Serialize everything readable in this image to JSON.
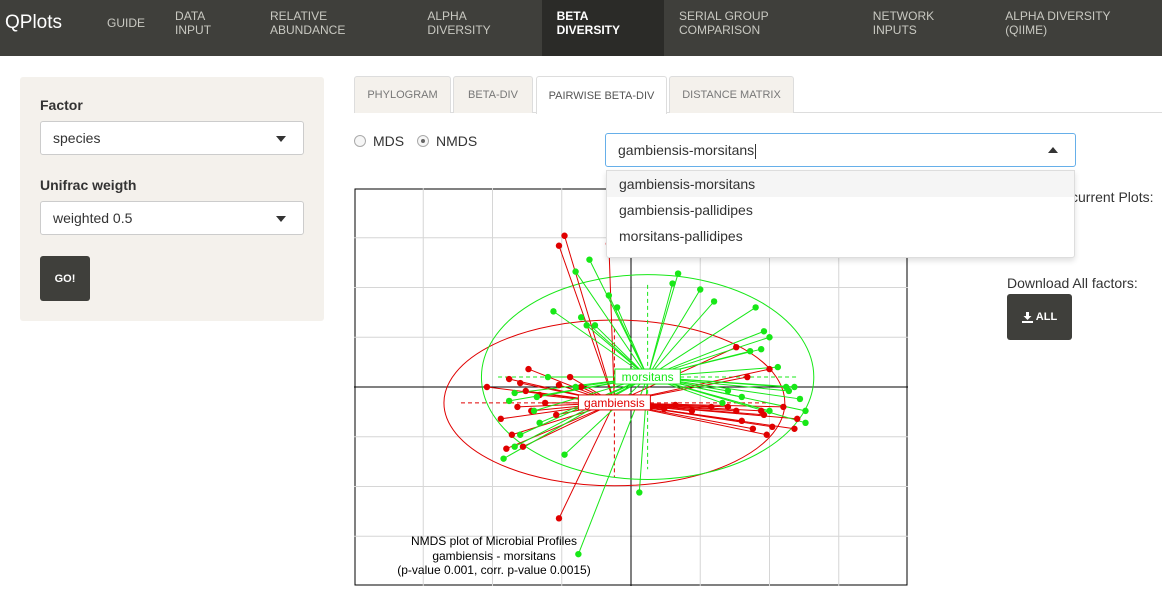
{
  "app": {
    "title": "QPlots"
  },
  "nav": {
    "items": [
      "GUIDE",
      "DATA INPUT",
      "RELATIVE ABUNDANCE",
      "ALPHA DIVERSITY",
      "BETA DIVERSITY",
      "SERIAL GROUP COMPARISON",
      "NETWORK INPUTS",
      "ALPHA DIVERSITY (QIIME)"
    ],
    "active": "BETA DIVERSITY"
  },
  "sidebar": {
    "factor_label": "Factor",
    "factor_value": "species",
    "unifrac_label": "Unifrac weigth",
    "unifrac_value": "weighted 0.5",
    "go_label": "GO!"
  },
  "tabs": {
    "items": [
      "PHYLOGRAM",
      "BETA-DIV",
      "PAIRWISE BETA-DIV",
      "DISTANCE MATRIX"
    ],
    "active": "PAIRWISE BETA-DIV"
  },
  "method": {
    "options": [
      "MDS",
      "NMDS"
    ],
    "selected": "NMDS"
  },
  "pair_select": {
    "value": "gambiensis-morsitans",
    "options": [
      "gambiensis-morsitans",
      "gambiensis-pallidipes",
      "morsitans-pallidipes"
    ],
    "highlighted": "gambiensis-morsitans"
  },
  "right_panel": {
    "current_plots_label": "current Plots:",
    "download_label": "Download All factors:",
    "all_button": "ALL",
    "all_icon": "download-icon"
  },
  "colors": {
    "navbar": "#3f3f3b",
    "group1": "#e00000",
    "group2": "#17e817"
  },
  "chart_data": {
    "type": "scatter",
    "subtype": "NMDS ordination with group spiders and ellipses",
    "title": "NMDS plot of Microbial Profiles",
    "subtitle": "gambiensis - morsitans",
    "caption": "(p-value 0.001, corr. p-value 0.0015)",
    "xlim": [
      -1.0,
      1.0
    ],
    "ylim": [
      -1.0,
      1.0
    ],
    "grid": true,
    "series": [
      {
        "name": "gambiensis",
        "color": "#e00000",
        "centroid": [
          -0.06,
          -0.08
        ],
        "points": [
          [
            -0.24,
            0.76
          ],
          [
            -0.26,
            0.71
          ],
          [
            -0.08,
            0.72
          ],
          [
            0.38,
            0.2
          ],
          [
            0.42,
            0.05
          ],
          [
            0.5,
            0.09
          ],
          [
            0.35,
            -0.1
          ],
          [
            0.47,
            -0.12
          ],
          [
            0.55,
            -0.1
          ],
          [
            0.59,
            -0.21
          ],
          [
            0.6,
            -0.16
          ],
          [
            0.48,
            -0.14
          ],
          [
            0.38,
            -0.12
          ],
          [
            0.29,
            -0.1
          ],
          [
            0.22,
            -0.12
          ],
          [
            0.16,
            -0.09
          ],
          [
            0.12,
            -0.11
          ],
          [
            0.07,
            -0.1
          ],
          [
            0.51,
            -0.2
          ],
          [
            0.49,
            -0.24
          ],
          [
            0.44,
            -0.21
          ],
          [
            0.4,
            -0.17
          ],
          [
            -0.37,
            0.09
          ],
          [
            -0.4,
            0.02
          ],
          [
            -0.44,
            0.04
          ],
          [
            -0.38,
            -0.02
          ],
          [
            -0.33,
            -0.04
          ],
          [
            -0.31,
            -0.08
          ],
          [
            -0.36,
            -0.12
          ],
          [
            -0.41,
            -0.1
          ],
          [
            -0.27,
            -0.14
          ],
          [
            -0.47,
            -0.16
          ],
          [
            -0.43,
            -0.24
          ],
          [
            -0.39,
            -0.3
          ],
          [
            -0.45,
            -0.31
          ],
          [
            -0.26,
            0.01
          ],
          [
            -0.22,
            0.05
          ],
          [
            -0.18,
            0.0
          ],
          [
            -0.52,
            0.0
          ],
          [
            -0.26,
            -0.66
          ]
        ]
      },
      {
        "name": "morsitans",
        "color": "#17e817",
        "centroid": [
          0.06,
          0.05
        ],
        "points": [
          [
            -0.15,
            0.64
          ],
          [
            -0.2,
            0.58
          ],
          [
            -0.08,
            0.46
          ],
          [
            -0.18,
            0.35
          ],
          [
            -0.28,
            0.38
          ],
          [
            -0.16,
            0.31
          ],
          [
            -0.13,
            0.31
          ],
          [
            -0.05,
            0.4
          ],
          [
            0.15,
            0.52
          ],
          [
            0.25,
            0.49
          ],
          [
            0.17,
            0.57
          ],
          [
            0.3,
            0.43
          ],
          [
            0.45,
            0.4
          ],
          [
            0.48,
            0.28
          ],
          [
            0.5,
            0.25
          ],
          [
            0.47,
            0.19
          ],
          [
            0.43,
            0.18
          ],
          [
            0.53,
            0.1
          ],
          [
            0.56,
            0.0
          ],
          [
            0.59,
            0.0
          ],
          [
            0.57,
            -0.02
          ],
          [
            0.61,
            -0.06
          ],
          [
            0.63,
            -0.12
          ],
          [
            0.63,
            -0.18
          ],
          [
            0.5,
            -0.12
          ],
          [
            0.4,
            -0.05
          ],
          [
            0.35,
            -0.02
          ],
          [
            0.33,
            -0.08
          ],
          [
            -0.3,
            0.05
          ],
          [
            -0.42,
            -0.03
          ],
          [
            -0.44,
            -0.07
          ],
          [
            -0.35,
            -0.12
          ],
          [
            -0.33,
            -0.18
          ],
          [
            -0.4,
            -0.24
          ],
          [
            -0.46,
            -0.36
          ],
          [
            -0.42,
            -0.3
          ],
          [
            -0.24,
            -0.34
          ],
          [
            0.03,
            -0.53
          ],
          [
            -0.19,
            -0.84
          ],
          [
            -0.34,
            -0.05
          ],
          [
            -0.2,
            0.0
          ]
        ]
      }
    ],
    "labels": [
      {
        "text": "morsitans",
        "series": "morsitans"
      },
      {
        "text": "gambiensis",
        "series": "gambiensis"
      }
    ]
  }
}
